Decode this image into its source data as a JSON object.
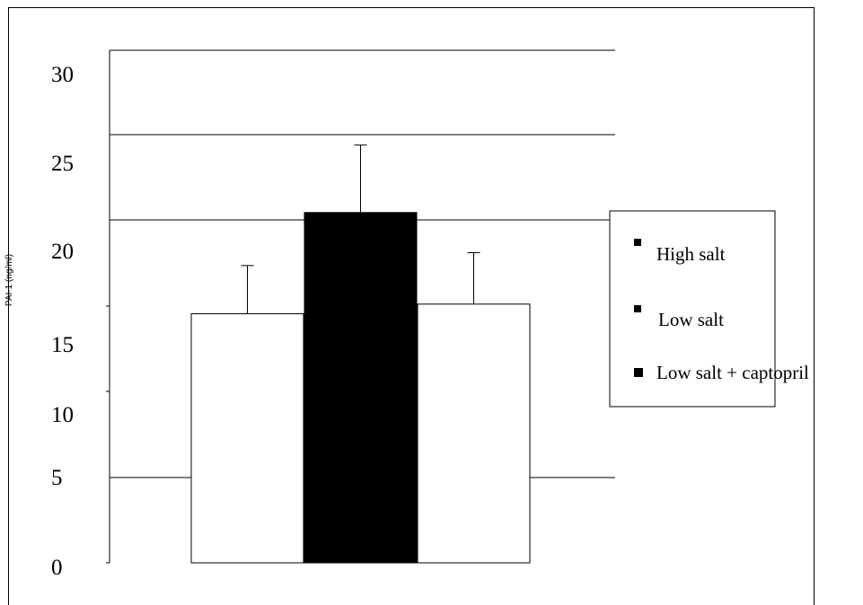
{
  "chart_data": {
    "type": "bar",
    "title": "",
    "xlabel": "",
    "ylabel": "PAI-1 (ng/ml)",
    "y_tick_labels": [
      "0",
      "5",
      "10",
      "15",
      "20",
      "25",
      "30"
    ],
    "ylim": [
      0,
      30
    ],
    "categories": [
      "High salt",
      "Low salt",
      "Low salt + captopril"
    ],
    "series": [
      {
        "values": [
          15.5,
          21.8,
          16.1
        ],
        "errors": [
          3.0,
          4.2,
          3.2
        ]
      }
    ],
    "colors": {
      "High salt": "#ffffff",
      "Low salt": "#000000",
      "Low salt + captopril": "#ffffff"
    },
    "legend": {
      "position": "right",
      "entries": [
        "High salt",
        "Low salt",
        "Low salt + captopril"
      ]
    },
    "grid": true
  }
}
